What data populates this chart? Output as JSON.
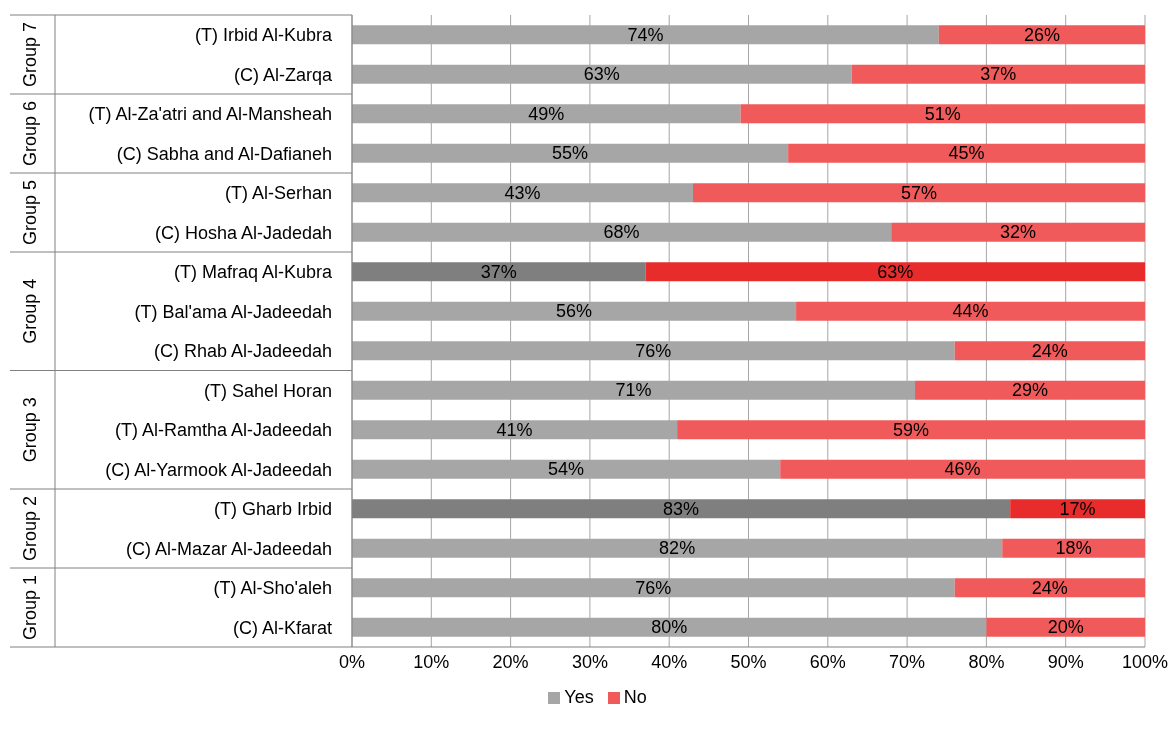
{
  "chart_data": {
    "type": "bar",
    "orientation": "horizontal",
    "stacked": true,
    "categories": [
      "(T) Irbid Al-Kubra",
      "(C) Al-Zarqa",
      "(T) Al-Za'atri and Al-Mansheah",
      "(C) Sabha and Al-Dafianeh",
      "(T) Al-Serhan",
      "(C) Hosha Al-Jadedah",
      "(T) Mafraq Al-Kubra",
      "(T) Bal'ama Al-Jadeedah",
      "(C) Rhab Al-Jadeedah",
      "(T) Sahel Horan",
      "(T) Al-Ramtha Al-Jadeedah",
      "(C) Al-Yarmook Al-Jadeedah",
      "(T) Gharb Irbid",
      "(C) Al-Mazar Al-Jadeedah",
      "(T) Al-Sho'aleh",
      "(C) Al-Kfarat"
    ],
    "series": [
      {
        "name": "Yes",
        "color": "#a6a6a6",
        "colors": [
          "#a6a6a6",
          "#a6a6a6",
          "#a6a6a6",
          "#a6a6a6",
          "#a6a6a6",
          "#a6a6a6",
          "#7f7f7f",
          "#a6a6a6",
          "#a6a6a6",
          "#a6a6a6",
          "#a6a6a6",
          "#a6a6a6",
          "#7f7f7f",
          "#a6a6a6",
          "#a6a6a6",
          "#a6a6a6"
        ],
        "values": [
          74,
          63,
          49,
          55,
          43,
          68,
          37,
          56,
          76,
          71,
          41,
          54,
          83,
          82,
          76,
          80
        ],
        "value_labels": [
          "74%",
          "63%",
          "49%",
          "55%",
          "43%",
          "68%",
          "37%",
          "56%",
          "76%",
          "71%",
          "41%",
          "54%",
          "83%",
          "82%",
          "76%",
          "80%"
        ]
      },
      {
        "name": "No",
        "color": "#f05a5a",
        "colors": [
          "#f05a5a",
          "#f05a5a",
          "#f05a5a",
          "#f05a5a",
          "#f05a5a",
          "#f05a5a",
          "#e82c2c",
          "#f05a5a",
          "#f05a5a",
          "#f05a5a",
          "#f05a5a",
          "#f05a5a",
          "#e82c2c",
          "#f05a5a",
          "#f05a5a",
          "#f05a5a"
        ],
        "values": [
          26,
          37,
          51,
          45,
          57,
          32,
          63,
          44,
          24,
          29,
          59,
          46,
          17,
          18,
          24,
          20
        ],
        "value_labels": [
          "26%",
          "37%",
          "51%",
          "45%",
          "57%",
          "32%",
          "63%",
          "44%",
          "24%",
          "29%",
          "59%",
          "46%",
          "17%",
          "18%",
          "24%",
          "20%"
        ]
      }
    ],
    "xlim": [
      0,
      100
    ],
    "xticks": [
      {
        "value": 0,
        "label": "0%"
      },
      {
        "value": 10,
        "label": "10%"
      },
      {
        "value": 20,
        "label": "20%"
      },
      {
        "value": 30,
        "label": "30%"
      },
      {
        "value": 40,
        "label": "40%"
      },
      {
        "value": 50,
        "label": "50%"
      },
      {
        "value": 60,
        "label": "60%"
      },
      {
        "value": 70,
        "label": "70%"
      },
      {
        "value": 80,
        "label": "80%"
      },
      {
        "value": 90,
        "label": "90%"
      },
      {
        "value": 100,
        "label": "100%"
      }
    ],
    "grid": "x",
    "legend": "bottom",
    "annotations": [
      "Group 7",
      "Group 6",
      "Group 5",
      "Group 4",
      "Group 3",
      "Group 2",
      "Group 1"
    ]
  }
}
